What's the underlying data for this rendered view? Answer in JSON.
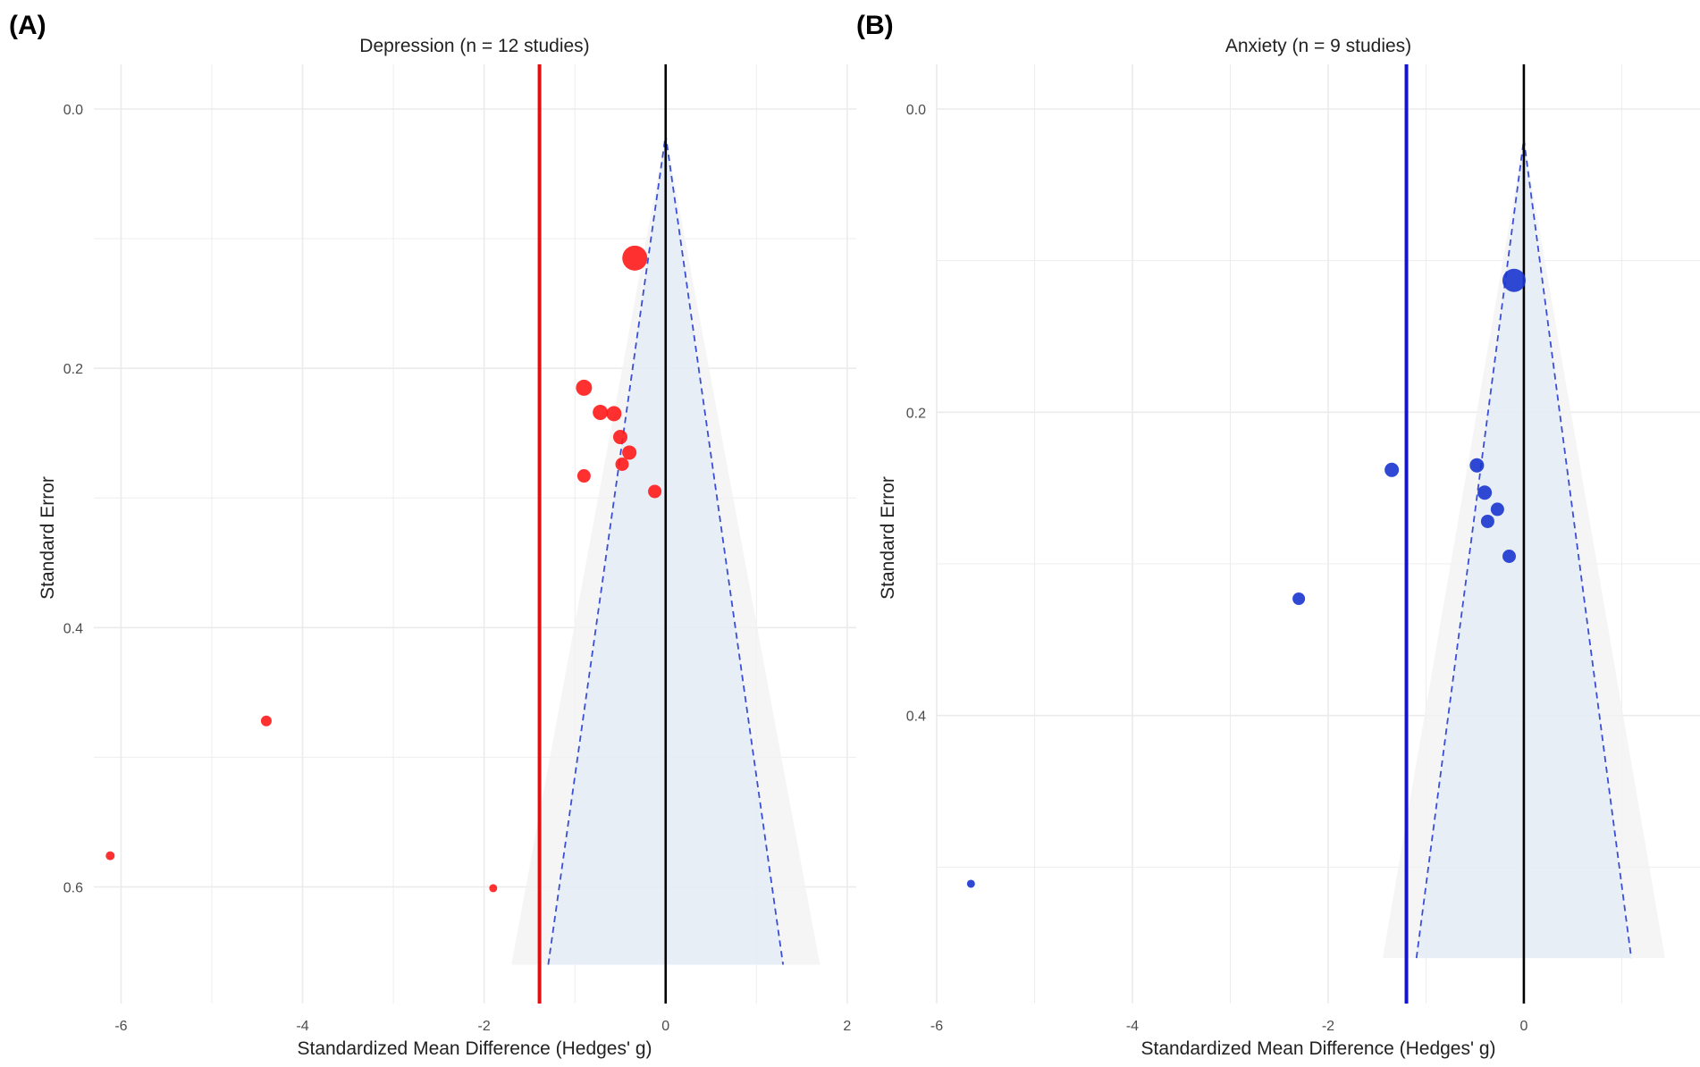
{
  "colors": {
    "grid": "#ebebeb",
    "funnel_inner": "#dde9f6",
    "funnel_outer": "#f3f3f3",
    "funnel_line": "#3a4fd6",
    "zero_line": "#000000"
  },
  "chart_data": [
    {
      "type": "scatter",
      "panel_label": "(A)",
      "title": "Depression (n = 12 studies)",
      "xlabel": "Standardized Mean Difference (Hedges' g)",
      "ylabel": "Standard Error",
      "xlim": [
        -6.3,
        2.1
      ],
      "ylim": [
        0.0,
        0.69
      ],
      "y_reversed": true,
      "xticks": [
        -6,
        -4,
        -2,
        0,
        2
      ],
      "yticks": [
        0.0,
        0.2,
        0.4,
        0.6
      ],
      "ytick_labels": [
        "0.0",
        "0.2",
        "0.4",
        "0.6"
      ],
      "grid": true,
      "funnel_apex_x": 0,
      "funnel_max_se": 0.66,
      "summary_effect": -1.39,
      "summary_color": "#e01010",
      "point_color": "#ff1a1a",
      "points": [
        {
          "x": -0.34,
          "y": 0.115,
          "r": 14
        },
        {
          "x": -0.9,
          "y": 0.215,
          "r": 9
        },
        {
          "x": -0.72,
          "y": 0.234,
          "r": 8.5
        },
        {
          "x": -0.57,
          "y": 0.235,
          "r": 8.5
        },
        {
          "x": -0.5,
          "y": 0.253,
          "r": 8
        },
        {
          "x": -0.4,
          "y": 0.265,
          "r": 8
        },
        {
          "x": -0.48,
          "y": 0.274,
          "r": 7.5
        },
        {
          "x": -0.9,
          "y": 0.283,
          "r": 7.5
        },
        {
          "x": -0.12,
          "y": 0.295,
          "r": 7.5
        },
        {
          "x": -4.4,
          "y": 0.472,
          "r": 6
        },
        {
          "x": -6.12,
          "y": 0.576,
          "r": 5
        },
        {
          "x": -1.9,
          "y": 0.601,
          "r": 4.5
        }
      ]
    },
    {
      "type": "scatter",
      "panel_label": "(B)",
      "title": "Anxiety (n = 9 studies)",
      "xlabel": "Standardized Mean Difference (Hedges' g)",
      "ylabel": "Standard Error",
      "xlim": [
        -6.0,
        1.8
      ],
      "ylim": [
        0.0,
        0.59
      ],
      "y_reversed": true,
      "xticks": [
        -6,
        -4,
        -2,
        0
      ],
      "yticks": [
        0.0,
        0.2,
        0.4
      ],
      "ytick_labels": [
        "0.0",
        "0.2",
        "0.4"
      ],
      "grid": true,
      "funnel_apex_x": 0,
      "funnel_max_se": 0.56,
      "summary_effect": -1.2,
      "summary_color": "#1414c8",
      "point_color": "#1a35d0",
      "points": [
        {
          "x": -0.1,
          "y": 0.113,
          "r": 13
        },
        {
          "x": -1.35,
          "y": 0.238,
          "r": 8
        },
        {
          "x": -0.48,
          "y": 0.235,
          "r": 8
        },
        {
          "x": -0.4,
          "y": 0.253,
          "r": 8
        },
        {
          "x": -0.27,
          "y": 0.264,
          "r": 7.5
        },
        {
          "x": -0.37,
          "y": 0.272,
          "r": 7.5
        },
        {
          "x": -0.15,
          "y": 0.295,
          "r": 7.5
        },
        {
          "x": -2.3,
          "y": 0.323,
          "r": 7
        },
        {
          "x": -5.65,
          "y": 0.511,
          "r": 4.5
        }
      ]
    }
  ]
}
